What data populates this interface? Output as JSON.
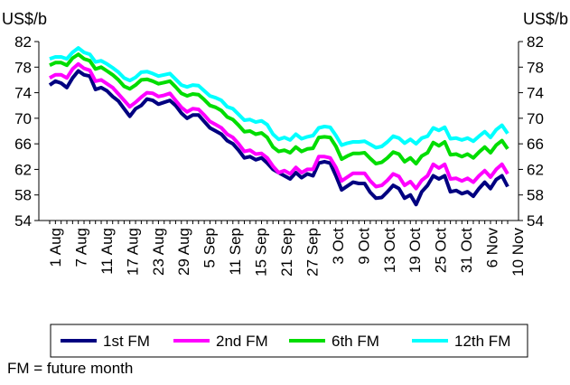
{
  "chart_data": {
    "type": "line",
    "y_unit_left": "US$/b",
    "y_unit_right": "US$/b",
    "ylim": [
      54,
      82
    ],
    "yticks": [
      54,
      58,
      62,
      66,
      70,
      74,
      78,
      82
    ],
    "x_tick_labels": [
      "1 Aug",
      "7 Aug",
      "11 Aug",
      "17 Aug",
      "23 Aug",
      "29 Aug",
      "5 Sep",
      "11 Sep",
      "15 Sep",
      "21 Sep",
      "27 Sep",
      "3 Oct",
      "9 Oct",
      "13 Oct",
      "19 Oct",
      "25 Oct",
      "31 Oct",
      "6 Nov",
      "10 Nov"
    ],
    "grid": false,
    "legend_position": "bottom",
    "series": [
      {
        "name": "1st FM",
        "color": "#000080",
        "values": [
          75.2,
          75.8,
          75.5,
          74.8,
          76.3,
          77.4,
          76.8,
          76.6,
          74.5,
          74.8,
          74.3,
          73.4,
          72.7,
          71.5,
          70.3,
          71.5,
          72.0,
          73.0,
          72.8,
          72.2,
          72.5,
          72.8,
          72.0,
          70.8,
          70.0,
          70.5,
          70.5,
          69.5,
          68.5,
          68.0,
          67.5,
          66.5,
          66.0,
          65.0,
          63.8,
          64.0,
          63.5,
          63.8,
          63.0,
          62.0,
          61.5,
          61.0,
          60.5,
          61.5,
          60.7,
          61.3,
          61.0,
          63.0,
          63.2,
          63.0,
          61.0,
          58.8,
          59.4,
          60.0,
          59.8,
          59.8,
          58.4,
          57.5,
          57.6,
          58.5,
          59.5,
          59.0,
          57.5,
          58.0,
          56.5,
          58.5,
          59.5,
          61.0,
          60.5,
          61.0,
          58.5,
          58.7,
          58.2,
          58.5,
          57.8,
          59.0,
          60.0,
          59.0,
          60.4,
          61.0,
          59.3
        ]
      },
      {
        "name": "2nd FM",
        "color": "#ff00ff",
        "values": [
          76.3,
          76.8,
          76.8,
          76.3,
          77.7,
          78.5,
          77.8,
          77.5,
          75.8,
          76.0,
          75.4,
          74.8,
          73.8,
          72.8,
          71.8,
          72.5,
          73.3,
          74.0,
          73.9,
          73.4,
          73.6,
          73.9,
          72.8,
          71.7,
          71.0,
          71.5,
          71.4,
          70.5,
          69.5,
          69.0,
          68.5,
          67.5,
          67.0,
          66.0,
          64.8,
          65.0,
          64.4,
          64.5,
          63.8,
          62.5,
          61.5,
          61.8,
          61.3,
          62.3,
          61.5,
          62.0,
          62.0,
          64.0,
          64.0,
          63.8,
          62.3,
          60.2,
          60.8,
          61.4,
          61.4,
          61.4,
          60.2,
          59.3,
          59.5,
          60.3,
          61.3,
          60.9,
          59.5,
          60.1,
          59.0,
          60.3,
          61.0,
          62.8,
          62.2,
          62.8,
          60.5,
          60.6,
          60.2,
          60.6,
          60.0,
          61.0,
          61.8,
          60.8,
          62.0,
          62.8,
          61.3
        ]
      },
      {
        "name": "6th FM",
        "color": "#00dd00",
        "values": [
          78.3,
          78.7,
          78.7,
          78.3,
          79.4,
          80.0,
          79.3,
          79.0,
          77.7,
          78.0,
          77.4,
          76.8,
          76.0,
          75.0,
          74.6,
          75.2,
          76.0,
          76.1,
          75.8,
          75.4,
          75.6,
          75.8,
          74.9,
          73.9,
          73.5,
          73.8,
          73.7,
          72.9,
          72.0,
          71.7,
          71.2,
          70.2,
          69.8,
          68.9,
          67.9,
          68.0,
          67.5,
          67.7,
          67.0,
          65.5,
          64.8,
          65.0,
          64.6,
          65.5,
          64.8,
          65.2,
          65.3,
          67.0,
          67.1,
          67.0,
          65.6,
          63.6,
          64.1,
          64.5,
          64.5,
          64.6,
          63.7,
          62.9,
          63.1,
          63.8,
          64.7,
          64.4,
          63.2,
          63.8,
          62.9,
          64.1,
          64.6,
          66.2,
          65.7,
          66.3,
          64.3,
          64.4,
          64.0,
          64.4,
          63.8,
          64.7,
          65.5,
          64.6,
          65.8,
          66.5,
          65.2
        ]
      },
      {
        "name": "12th FM",
        "color": "#00ffff",
        "values": [
          79.3,
          79.6,
          79.6,
          79.3,
          80.3,
          81.0,
          80.3,
          80.0,
          78.8,
          79.0,
          78.5,
          77.9,
          77.2,
          76.3,
          75.9,
          76.4,
          77.2,
          77.3,
          77.0,
          76.6,
          76.8,
          77.0,
          76.1,
          75.2,
          74.9,
          75.2,
          75.1,
          74.3,
          73.5,
          73.2,
          72.8,
          71.8,
          71.5,
          70.6,
          69.7,
          69.8,
          69.4,
          69.6,
          69.0,
          67.5,
          66.7,
          67.0,
          66.6,
          67.5,
          66.8,
          67.1,
          67.3,
          68.5,
          68.7,
          68.6,
          67.3,
          65.8,
          66.1,
          66.3,
          66.3,
          66.4,
          65.9,
          65.4,
          65.6,
          66.3,
          67.2,
          66.9,
          66.1,
          66.7,
          66.0,
          66.9,
          67.2,
          68.5,
          68.1,
          68.6,
          66.8,
          66.9,
          66.6,
          66.9,
          66.4,
          67.2,
          67.9,
          67.0,
          68.2,
          68.9,
          67.6
        ]
      }
    ]
  },
  "legend": {
    "items": [
      {
        "label": "1st FM",
        "color": "#000080"
      },
      {
        "label": "2nd FM",
        "color": "#ff00ff"
      },
      {
        "label": "6th FM",
        "color": "#00dd00"
      },
      {
        "label": "12th FM",
        "color": "#00ffff"
      }
    ]
  },
  "footnote": "FM = future month"
}
